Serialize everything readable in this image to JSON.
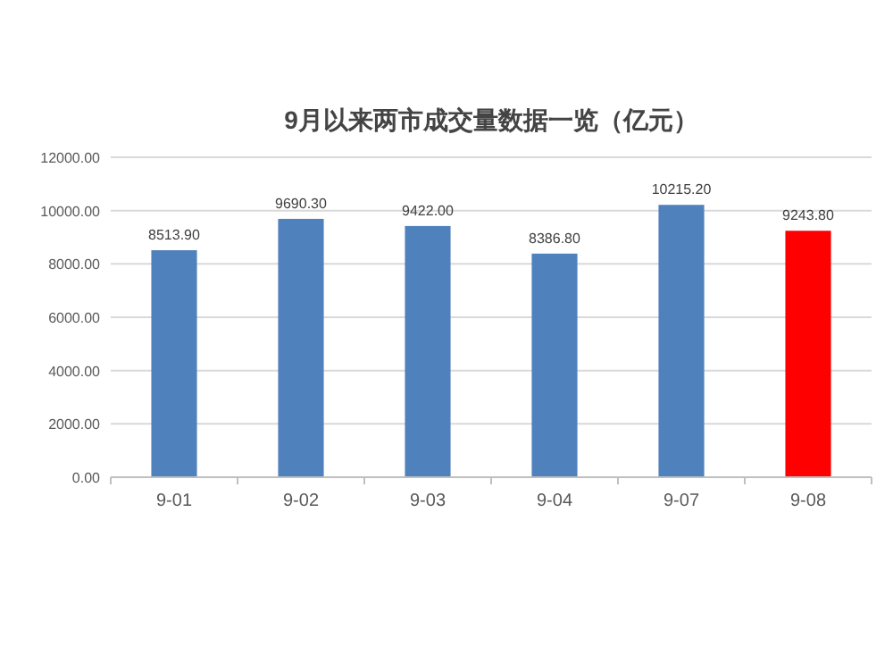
{
  "chart_data": {
    "type": "bar",
    "title": "9月以来两市成交量数据一览（亿元）",
    "categories": [
      "9-01",
      "9-02",
      "9-03",
      "9-04",
      "9-07",
      "9-08"
    ],
    "values": [
      8513.9,
      9690.3,
      9422.0,
      8386.8,
      10215.2,
      9243.8
    ],
    "value_labels": [
      "8513.90",
      "9690.30",
      "9422.00",
      "8386.80",
      "10215.20",
      "9243.80"
    ],
    "colors": [
      "#4f81bd",
      "#4f81bd",
      "#4f81bd",
      "#4f81bd",
      "#4f81bd",
      "#ff0000"
    ],
    "ylim": [
      0,
      12000
    ],
    "yticks": [
      {
        "value": 0,
        "label": "0.00"
      },
      {
        "value": 2000,
        "label": "2000.00"
      },
      {
        "value": 4000,
        "label": "4000.00"
      },
      {
        "value": 6000,
        "label": "6000.00"
      },
      {
        "value": 8000,
        "label": "8000.00"
      },
      {
        "value": 10000,
        "label": "10000.00"
      },
      {
        "value": 12000,
        "label": "12000.00"
      }
    ],
    "grid": "y"
  }
}
